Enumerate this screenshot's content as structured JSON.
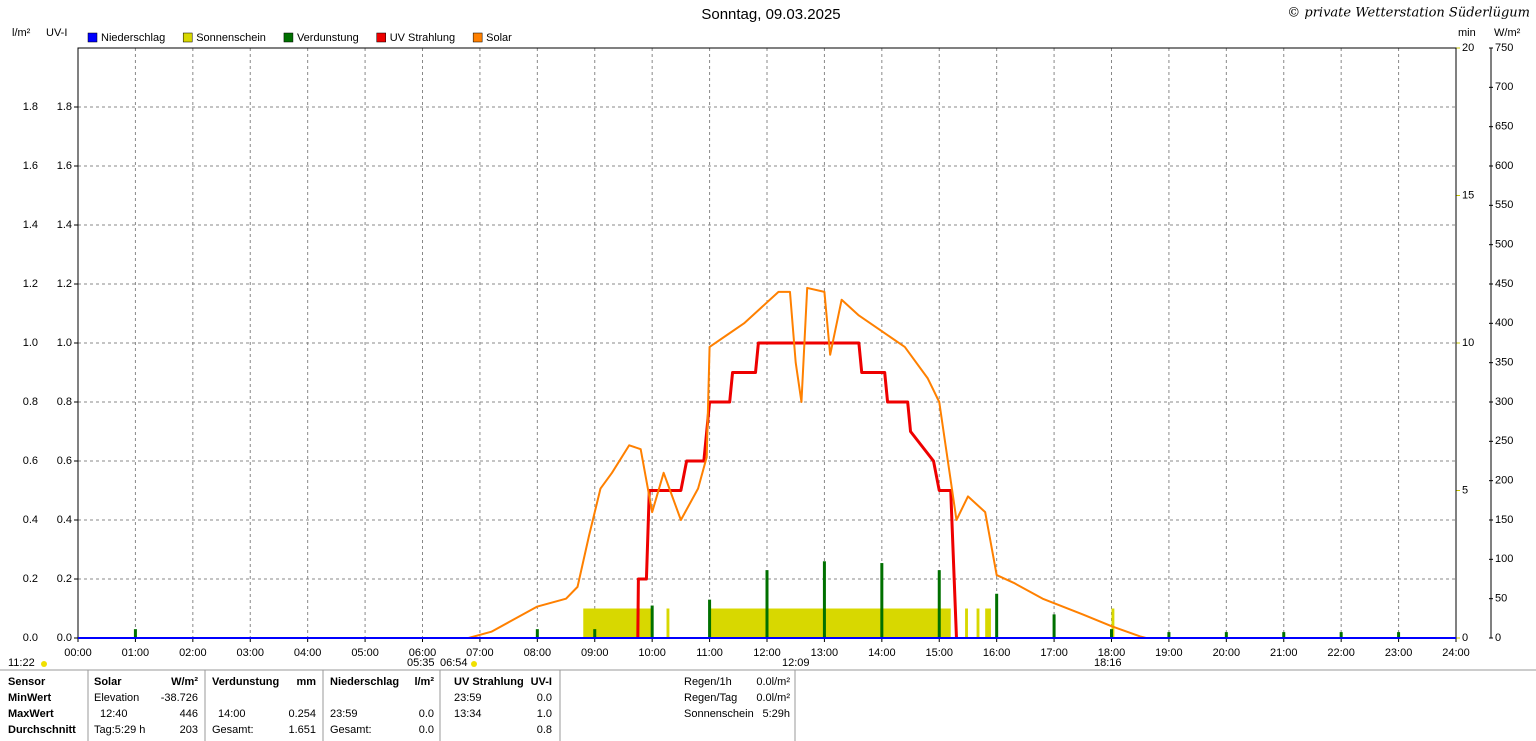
{
  "chart_data": {
    "type": "weather-day",
    "title": "Sonntag, 09.03.2025",
    "credit": "© private Wetterstation Süderlügum",
    "y_label": "l/m²",
    "y_label_uv": "UV-I",
    "y3_label": "min",
    "y2_label": "W/m²",
    "xlim": [
      0,
      24
    ],
    "xticks": [
      {
        "value": 0,
        "label": "00:00"
      },
      {
        "value": 1,
        "label": "01:00"
      },
      {
        "value": 2,
        "label": "02:00"
      },
      {
        "value": 3,
        "label": "03:00"
      },
      {
        "value": 4,
        "label": "04:00"
      },
      {
        "value": 5,
        "label": "05:00"
      },
      {
        "value": 6,
        "label": "06:00"
      },
      {
        "value": 7,
        "label": "07:00"
      },
      {
        "value": 8,
        "label": "08:00"
      },
      {
        "value": 9,
        "label": "09:00"
      },
      {
        "value": 10,
        "label": "10:00"
      },
      {
        "value": 11,
        "label": "11:00"
      },
      {
        "value": 12,
        "label": "12:00"
      },
      {
        "value": 13,
        "label": "13:00"
      },
      {
        "value": 14,
        "label": "14:00"
      },
      {
        "value": 15,
        "label": "15:00"
      },
      {
        "value": 16,
        "label": "16:00"
      },
      {
        "value": 17,
        "label": "17:00"
      },
      {
        "value": 18,
        "label": "18:00"
      },
      {
        "value": 19,
        "label": "19:00"
      },
      {
        "value": 20,
        "label": "20:00"
      },
      {
        "value": 21,
        "label": "21:00"
      },
      {
        "value": 22,
        "label": "22:00"
      },
      {
        "value": 23,
        "label": "23:00"
      },
      {
        "value": 24,
        "label": "24:00"
      }
    ],
    "ylim": [
      0,
      2
    ],
    "yticks": [
      {
        "value": 0,
        "label": "0.0"
      },
      0.2,
      0.4,
      0.6,
      0.8,
      {
        "value": 1,
        "label": "1.0"
      },
      1.2,
      1.4,
      1.6,
      1.8
    ],
    "y2lim": [
      0,
      750
    ],
    "y2ticks": [
      0,
      50,
      100,
      150,
      200,
      250,
      300,
      350,
      400,
      450,
      500,
      550,
      600,
      650,
      700,
      750
    ],
    "y3lim": [
      0,
      20
    ],
    "y3ticks": [
      0,
      5,
      10,
      15,
      20
    ],
    "grid": true,
    "series": [
      {
        "name": "Niederschlag",
        "color": "#0000ff",
        "text_color": "#0000a0",
        "kind": "line",
        "axis": "y",
        "x": [
          0,
          24
        ],
        "values": [
          0,
          0
        ]
      },
      {
        "name": "Sonnenschein",
        "color": "#d8d800",
        "text_color": "#c8c800",
        "kind": "interval",
        "axis": "y3",
        "starts": [
          8.8,
          10.25,
          11.0,
          15.45,
          15.65,
          15.8,
          18.0
        ],
        "ends": [
          10.0,
          10.3,
          15.2,
          15.5,
          15.7,
          15.9,
          18.05
        ],
        "values": [
          1,
          1,
          1,
          1,
          1,
          1,
          1
        ]
      },
      {
        "name": "Verdunstung",
        "color": "#007000",
        "text_color": "#000080",
        "kind": "spike",
        "axis": "y",
        "x": [
          1,
          8,
          9,
          10,
          11,
          12,
          13,
          14,
          15,
          16,
          17,
          18,
          19,
          20,
          21,
          22,
          23
        ],
        "values": [
          0.03,
          0.03,
          0.03,
          0.11,
          0.13,
          0.23,
          0.26,
          0.254,
          0.23,
          0.15,
          0.08,
          0.03,
          0.02,
          0.02,
          0.02,
          0.02,
          0.02
        ]
      },
      {
        "name": "UV Strahlung",
        "color": "#ee0000",
        "text_color": "#cc0000",
        "kind": "line",
        "width": 3,
        "axis": "y",
        "x": [
          9.75,
          9.76,
          9.9,
          9.95,
          10.5,
          10.6,
          10.9,
          10.95,
          11.0,
          11.35,
          11.4,
          11.8,
          11.85,
          13.6,
          13.65,
          14.05,
          14.1,
          14.45,
          14.5,
          14.9,
          15.0,
          15.2,
          15.3
        ],
        "values": [
          0,
          0.2,
          0.2,
          0.5,
          0.5,
          0.6,
          0.6,
          0.7,
          0.8,
          0.8,
          0.9,
          0.9,
          1.0,
          1.0,
          0.9,
          0.9,
          0.8,
          0.8,
          0.7,
          0.6,
          0.5,
          0.5,
          0
        ]
      },
      {
        "name": "Solar",
        "color": "#ff8000",
        "text_color": "#e07000",
        "kind": "line",
        "width": 2,
        "axis": "y2",
        "x": [
          6.8,
          7.2,
          7.5,
          8.0,
          8.5,
          8.7,
          8.9,
          9.0,
          9.1,
          9.3,
          9.6,
          9.8,
          10.0,
          10.2,
          10.5,
          10.8,
          10.95,
          11.0,
          11.3,
          11.6,
          11.9,
          12.2,
          12.4,
          12.5,
          12.6,
          12.7,
          13.0,
          13.1,
          13.3,
          13.6,
          14.0,
          14.4,
          14.8,
          15.0,
          15.1,
          15.2,
          15.3,
          15.5,
          15.8,
          16.0,
          16.3,
          16.8,
          17.5,
          18.0,
          18.5,
          18.6
        ],
        "values": [
          0,
          8,
          20,
          40,
          50,
          65,
          130,
          160,
          190,
          210,
          245,
          240,
          160,
          210,
          150,
          190,
          230,
          370,
          385,
          400,
          420,
          440,
          440,
          350,
          300,
          445,
          440,
          360,
          430,
          410,
          390,
          370,
          330,
          300,
          250,
          200,
          150,
          180,
          160,
          80,
          70,
          50,
          30,
          15,
          2,
          0
        ]
      }
    ],
    "annotations": [
      "11:22",
      "05:35",
      "06:54",
      "12:09",
      "18:16"
    ]
  },
  "stats": {
    "header": [
      "Sensor",
      "Solar",
      "W/m²",
      "Verdunstung",
      "mm",
      "Niederschlag",
      "l/m²",
      "UV Strahlung",
      "UV-I"
    ],
    "rows": [
      [
        "MinWert",
        "Elevation",
        "-38.726",
        null,
        null,
        null,
        null,
        "23:59",
        "0.0"
      ],
      [
        "MaxWert",
        "12:40",
        "446",
        "14:00",
        "0.254",
        "23:59",
        "0.0",
        "13:34",
        "1.0"
      ],
      [
        "Durchschnitt",
        "Tag:5:29 h",
        "203",
        "Gesamt:",
        "1.651",
        "Gesamt:",
        "0.0",
        null,
        "0.8"
      ]
    ],
    "summary": [
      [
        "Regen/1h",
        "0.0l/m²"
      ],
      [
        "Regen/Tag",
        "0.0l/m²"
      ],
      [
        "Sonnenschein",
        "5:29h"
      ]
    ]
  }
}
